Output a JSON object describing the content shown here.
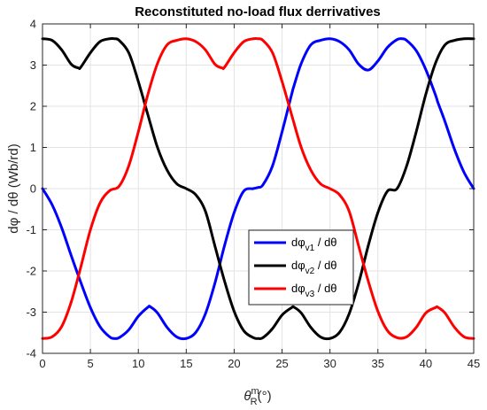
{
  "chart_data": {
    "type": "line",
    "title": "Reconstituted no-load flux derrivatives",
    "xlabel": {
      "base": "θ",
      "sup": "m",
      "sub": "R",
      "suffix": "(°)"
    },
    "ylabel": "dφ / dθ (Wb/rd)",
    "xlim": [
      0,
      45
    ],
    "ylim": [
      -4,
      4
    ],
    "xticks": [
      "0",
      "5",
      "10",
      "15",
      "20",
      "25",
      "30",
      "35",
      "40",
      "45"
    ],
    "yticks": [
      "-4",
      "-3",
      "-2",
      "-1",
      "0",
      "1",
      "2",
      "3",
      "4"
    ],
    "grid": true,
    "legend_position": "center",
    "series": [
      {
        "legend": {
          "pre": "dφ",
          "sub": "v1",
          "post": " / dθ"
        },
        "color": "#0000ff",
        "x": [
          0,
          1,
          2,
          3,
          4,
          5,
          6,
          7,
          7.5,
          8,
          9,
          10,
          11,
          11.25,
          12,
          13,
          14,
          15,
          16,
          17,
          18,
          19,
          20,
          21,
          22,
          22.5,
          23,
          24,
          25,
          26,
          26.25,
          27,
          28,
          29,
          30,
          31,
          32,
          33,
          34,
          35,
          36,
          37,
          37.5,
          38,
          39,
          40,
          41,
          41.25,
          42,
          43,
          44,
          45
        ],
        "y": [
          0.0,
          -0.39,
          -0.95,
          -1.63,
          -2.28,
          -2.89,
          -3.35,
          -3.6,
          -3.64,
          -3.62,
          -3.43,
          -3.1,
          -2.88,
          -2.87,
          -3.02,
          -3.37,
          -3.6,
          -3.64,
          -3.49,
          -3.04,
          -2.29,
          -1.38,
          -0.58,
          -0.06,
          0.0,
          0.03,
          0.09,
          0.55,
          1.38,
          2.29,
          2.5,
          3.04,
          3.49,
          3.6,
          3.64,
          3.57,
          3.37,
          3.02,
          2.88,
          3.1,
          3.43,
          3.62,
          3.64,
          3.6,
          3.35,
          2.89,
          2.28,
          2.1,
          1.63,
          0.95,
          0.39,
          0.0
        ]
      },
      {
        "legend": {
          "pre": "dφ",
          "sub": "v2",
          "post": " / dθ"
        },
        "color": "#000000",
        "x": [
          0,
          1,
          2,
          3,
          3.75,
          4,
          5,
          6,
          7,
          7.5,
          8,
          9,
          10,
          11,
          12,
          13,
          14,
          15,
          16,
          17,
          18,
          19,
          20,
          21,
          22,
          22.5,
          23,
          24,
          25,
          26,
          26.25,
          27,
          28,
          29,
          30,
          31,
          32,
          33,
          34,
          35,
          36,
          37,
          38,
          39,
          40,
          41,
          42,
          43,
          44,
          45
        ],
        "y": [
          3.64,
          3.6,
          3.37,
          3.02,
          2.93,
          2.95,
          3.3,
          3.57,
          3.64,
          3.64,
          3.6,
          3.3,
          2.6,
          1.79,
          1.0,
          0.45,
          0.12,
          0.0,
          -0.15,
          -0.55,
          -1.4,
          -2.25,
          -2.98,
          -3.45,
          -3.62,
          -3.64,
          -3.62,
          -3.4,
          -3.07,
          -2.89,
          -2.88,
          -3.02,
          -3.37,
          -3.6,
          -3.64,
          -3.49,
          -3.04,
          -2.29,
          -1.38,
          -0.58,
          -0.06,
          0.0,
          0.55,
          1.38,
          2.29,
          3.04,
          3.49,
          3.6,
          3.64,
          3.64
        ]
      },
      {
        "legend": {
          "pre": "dφ",
          "sub": "v3",
          "post": " / dθ"
        },
        "color": "#ff0000",
        "x": [
          0,
          1,
          2,
          3,
          4,
          5,
          6,
          7,
          8,
          9,
          10,
          11,
          12,
          13,
          14,
          15,
          16,
          17,
          18,
          18.75,
          19,
          20,
          21,
          22,
          22.5,
          23,
          24,
          25,
          26,
          27,
          28,
          29,
          30,
          31,
          32,
          33,
          34,
          35,
          36,
          37,
          38,
          39,
          40,
          41,
          41.25,
          42,
          43,
          44,
          45
        ],
        "y": [
          -3.64,
          -3.6,
          -3.35,
          -2.75,
          -1.9,
          -1.0,
          -0.35,
          -0.05,
          0.06,
          0.55,
          1.38,
          2.29,
          3.04,
          3.49,
          3.6,
          3.64,
          3.57,
          3.37,
          3.02,
          2.93,
          2.95,
          3.3,
          3.57,
          3.64,
          3.64,
          3.6,
          3.3,
          2.6,
          1.79,
          1.0,
          0.45,
          0.12,
          0.0,
          -0.15,
          -0.55,
          -1.4,
          -2.25,
          -2.98,
          -3.45,
          -3.62,
          -3.6,
          -3.37,
          -3.02,
          -2.89,
          -2.88,
          -3.02,
          -3.37,
          -3.6,
          -3.64
        ]
      }
    ]
  }
}
